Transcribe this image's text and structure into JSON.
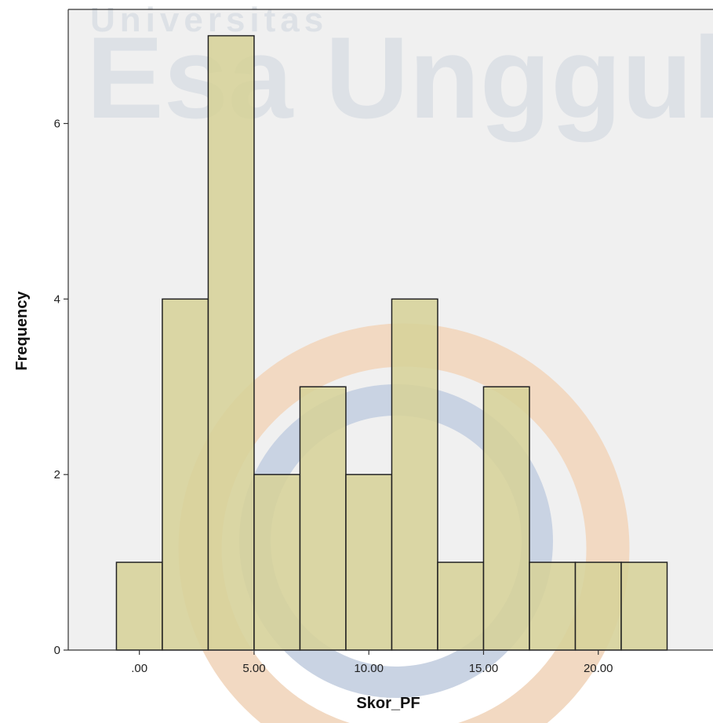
{
  "watermark": {
    "line1": "Universitas",
    "line2": "Esa Unggul",
    "colors": {
      "text": "#dde1e6",
      "ring_blue": "#c9d3e3",
      "ring_orange": "#f2d9c2"
    }
  },
  "colors": {
    "plot_background": "#f0f0f0",
    "bar_fill": "#d6d199",
    "bar_stroke": "#222222",
    "frame": "#333333"
  },
  "chart_data": {
    "type": "bar",
    "subtype": "histogram",
    "title": "",
    "xlabel": "Skor_PF",
    "ylabel": "Frequency",
    "bin_edges": [
      -1,
      1,
      3,
      5,
      7,
      9,
      11,
      13,
      15,
      17,
      19,
      21,
      23
    ],
    "values": [
      1,
      4,
      7,
      2,
      3,
      2,
      4,
      1,
      3,
      1,
      1,
      1
    ],
    "xlim": [
      -3.1,
      25
    ],
    "ylim": [
      0,
      7.3
    ],
    "x_ticks": [
      0,
      5,
      10,
      15,
      20
    ],
    "x_tick_labels": [
      ".00",
      "5.00",
      "10.00",
      "15.00",
      "20.00"
    ],
    "y_ticks": [
      0,
      2,
      4,
      6
    ],
    "y_tick_labels": [
      "0",
      "2",
      "4",
      "6"
    ],
    "grid": false,
    "legend": "none"
  }
}
